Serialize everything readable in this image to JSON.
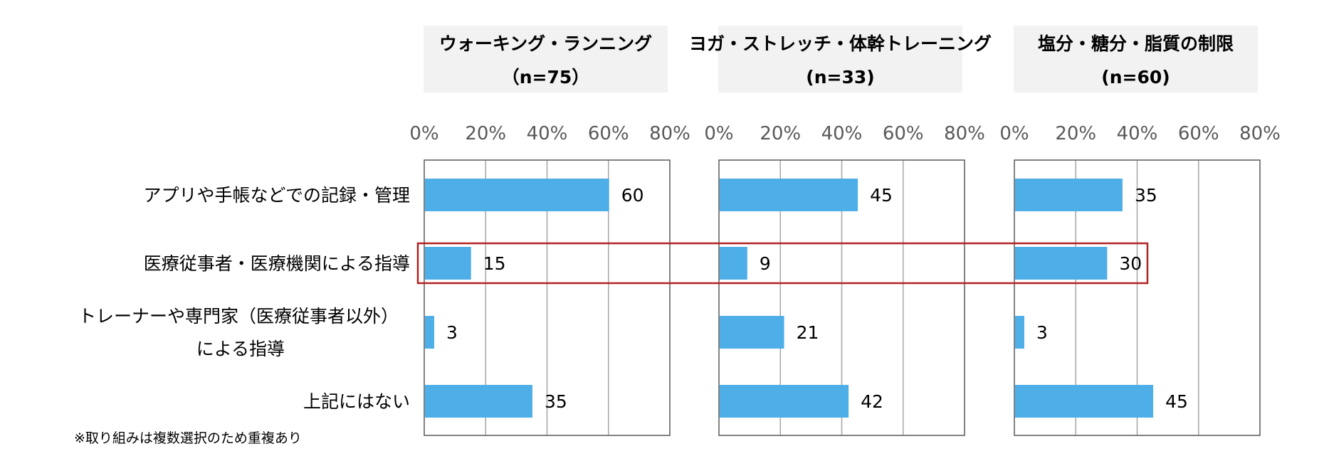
{
  "chart_data": {
    "type": "bar",
    "orientation": "horizontal",
    "categories": [
      [
        "アプリや手帳などでの記録・管理"
      ],
      [
        "医療従事者・医療機関による指導"
      ],
      [
        "トレーナーや専門家（医療従事者以外）",
        "による指導"
      ],
      [
        "上記にはない"
      ]
    ],
    "xlim": [
      0,
      80
    ],
    "ticks": [
      "0%",
      "20%",
      "40%",
      "60%",
      "80%"
    ],
    "tick_values": [
      0,
      20,
      40,
      60,
      80
    ],
    "grid": true,
    "bar_color": "#4DAEE8",
    "highlight_color": "#B22222",
    "highlight_category_index": 1,
    "panels": [
      {
        "title": "ウォーキング・ランニング",
        "n": "（n=75）",
        "values": [
          60,
          15,
          3,
          35
        ]
      },
      {
        "title": "ヨガ・ストレッチ・体幹トレーニング",
        "n": "(n=33)",
        "values": [
          45,
          9,
          21,
          42
        ]
      },
      {
        "title": "塩分・糖分・脂質の制限",
        "n": "(n=60)",
        "values": [
          35,
          30,
          3,
          45
        ]
      }
    ],
    "footnote": "※取り組みは複数選択のため重複あり"
  }
}
